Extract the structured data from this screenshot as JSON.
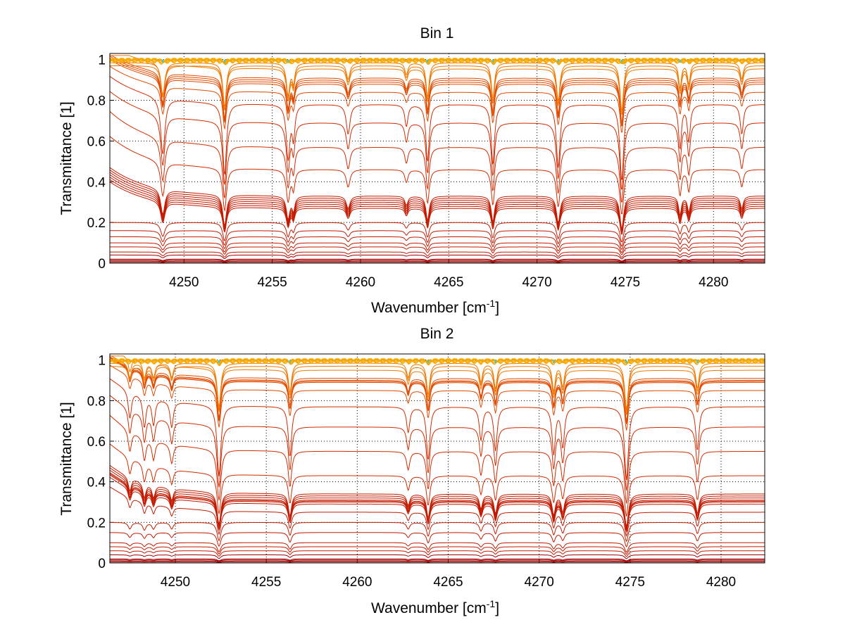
{
  "chart_data": [
    {
      "type": "line",
      "title": "Bin 1",
      "xlabel_main": "Wavenumber [cm",
      "xlabel_sup": "-1",
      "xlabel_end": "]",
      "ylabel": "Transmittance [1]",
      "xlim": [
        4245.8,
        4282.9
      ],
      "ylim": [
        0,
        1.03
      ],
      "xticks": [
        4250,
        4255,
        4260,
        4265,
        4270,
        4275,
        4280
      ],
      "yticks": [
        0,
        0.2,
        0.4,
        0.6,
        0.8,
        1
      ],
      "grid": true,
      "line_centers": [
        {
          "x": 4248.8,
          "depth": 0.7,
          "width": 0.13
        },
        {
          "x": 4252.3,
          "depth": 1.0,
          "width": 0.11
        },
        {
          "x": 4255.9,
          "depth": 0.7,
          "width": 0.11
        },
        {
          "x": 4256.2,
          "depth": 0.4,
          "width": 0.09
        },
        {
          "x": 4259.3,
          "depth": 0.35,
          "width": 0.12
        },
        {
          "x": 4262.6,
          "depth": 0.25,
          "width": 0.1
        },
        {
          "x": 4263.8,
          "depth": 0.75,
          "width": 0.1
        },
        {
          "x": 4267.5,
          "depth": 0.8,
          "width": 0.1
        },
        {
          "x": 4271.2,
          "depth": 0.85,
          "width": 0.11
        },
        {
          "x": 4274.8,
          "depth": 1.1,
          "width": 0.11
        },
        {
          "x": 4278.1,
          "depth": 0.55,
          "width": 0.09
        },
        {
          "x": 4278.6,
          "depth": 0.45,
          "width": 0.09
        },
        {
          "x": 4281.6,
          "depth": 0.35,
          "width": 0.1
        }
      ],
      "series_levels": [
        0.0,
        0.005,
        0.01,
        0.015,
        0.02,
        0.04,
        0.055,
        0.08,
        0.1,
        0.13,
        0.16,
        0.2,
        0.27,
        0.28,
        0.29,
        0.3,
        0.31,
        0.32,
        0.33,
        0.46,
        0.57,
        0.69,
        0.78,
        0.84,
        0.88,
        0.89,
        0.9,
        0.91,
        0.955,
        0.97,
        0.985,
        0.99,
        0.995,
        1.0,
        1.0,
        1.0
      ]
    },
    {
      "type": "line",
      "title": "Bin 2",
      "xlabel_main": "Wavenumber [cm",
      "xlabel_sup": "-1",
      "xlabel_end": "]",
      "ylabel": "Transmittance [1]",
      "xlim": [
        4246.4,
        4282.4
      ],
      "ylim": [
        0,
        1.03
      ],
      "xticks": [
        4250,
        4255,
        4260,
        4265,
        4270,
        4275,
        4280
      ],
      "yticks": [
        0,
        0.2,
        0.4,
        0.6,
        0.8,
        1
      ],
      "grid": true,
      "line_centers": [
        {
          "x": 4247.5,
          "depth": 0.3,
          "width": 0.1
        },
        {
          "x": 4248.3,
          "depth": 0.35,
          "width": 0.1
        },
        {
          "x": 4248.8,
          "depth": 0.3,
          "width": 0.1
        },
        {
          "x": 4249.8,
          "depth": 0.3,
          "width": 0.1
        },
        {
          "x": 4252.4,
          "depth": 1.0,
          "width": 0.11
        },
        {
          "x": 4256.3,
          "depth": 0.65,
          "width": 0.1
        },
        {
          "x": 4262.8,
          "depth": 0.3,
          "width": 0.1
        },
        {
          "x": 4263.9,
          "depth": 0.7,
          "width": 0.1
        },
        {
          "x": 4266.8,
          "depth": 0.4,
          "width": 0.1
        },
        {
          "x": 4267.6,
          "depth": 0.55,
          "width": 0.1
        },
        {
          "x": 4270.8,
          "depth": 0.6,
          "width": 0.1
        },
        {
          "x": 4271.3,
          "depth": 0.5,
          "width": 0.1
        },
        {
          "x": 4274.8,
          "depth": 1.05,
          "width": 0.11
        },
        {
          "x": 4278.7,
          "depth": 0.55,
          "width": 0.1
        }
      ],
      "series_levels": [
        0.0,
        0.005,
        0.01,
        0.015,
        0.02,
        0.04,
        0.06,
        0.08,
        0.1,
        0.15,
        0.2,
        0.25,
        0.29,
        0.3,
        0.305,
        0.31,
        0.32,
        0.33,
        0.34,
        0.43,
        0.55,
        0.67,
        0.77,
        0.85,
        0.89,
        0.895,
        0.9,
        0.91,
        0.95,
        0.97,
        0.985,
        0.99,
        0.995,
        1.0,
        1.0,
        1.0
      ]
    }
  ]
}
